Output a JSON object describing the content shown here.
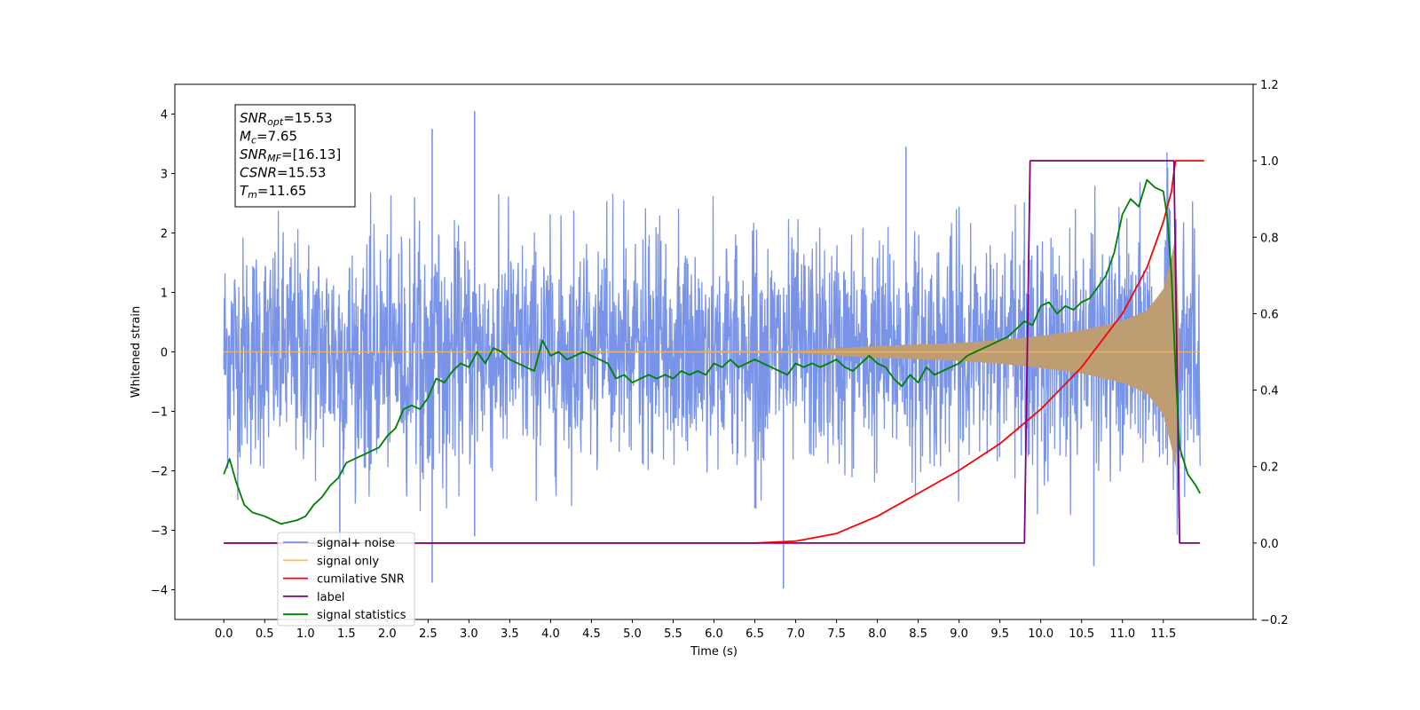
{
  "chart_data": {
    "type": "line",
    "xlabel": "Time (s)",
    "ylabel": "Whitened strain",
    "xlim": [
      -0.6,
      12.6
    ],
    "ylim": [
      -4.5,
      4.5
    ],
    "y2lim": [
      -0.2,
      1.2
    ],
    "x_ticks": [
      "0.0",
      "0.5",
      "1.0",
      "1.5",
      "2.0",
      "2.5",
      "3.0",
      "3.5",
      "4.0",
      "4.5",
      "5.0",
      "5.5",
      "6.0",
      "6.5",
      "7.0",
      "7.5",
      "8.0",
      "8.5",
      "9.0",
      "9.5",
      "10.0",
      "10.5",
      "11.0",
      "11.5"
    ],
    "y_ticks": [
      "4",
      "3",
      "2",
      "1",
      "0",
      "−1",
      "−2",
      "−3",
      "−4"
    ],
    "y2_ticks": [
      "1.2",
      "1.0",
      "0.8",
      "0.6",
      "0.4",
      "0.2",
      "0.0",
      "−0.2"
    ],
    "annotation": [
      {
        "base": "SNR",
        "sub": "opt",
        "value": "=15.53"
      },
      {
        "base": "M",
        "sub": "c",
        "value": "=7.65"
      },
      {
        "base": "SNR",
        "sub": "MF",
        "value": "=[16.13]"
      },
      {
        "base": "CSNR",
        "sub": "",
        "value": "=15.53"
      },
      {
        "base": "T",
        "sub": "m",
        "value": "=11.65"
      }
    ],
    "legend": {
      "placement": "lower-left",
      "entries": [
        {
          "label": "signal+ noise",
          "color": "#7893e8"
        },
        {
          "label": "signal only",
          "color": "#f5c16a"
        },
        {
          "label": "cumilative SNR",
          "color": "#ff0000"
        },
        {
          "label": "label",
          "color": "#800080"
        },
        {
          "label": "signal statistics",
          "color": "#008000"
        }
      ]
    },
    "series": [
      {
        "name": "signal+ noise",
        "axis": "left",
        "color": "#7893e8",
        "description_range": "dense noise between about -2.5 and 2.5 with spikes up to 4.05 and down to -3.98",
        "spikes": [
          [
            3.07,
            4.05
          ],
          [
            2.55,
            3.75
          ],
          [
            8.35,
            3.45
          ],
          [
            6.85,
            -3.98
          ],
          [
            2.55,
            -3.88
          ],
          [
            10.65,
            -3.6
          ],
          [
            3.07,
            -3.1
          ],
          [
            1.42,
            -3.25
          ]
        ]
      },
      {
        "name": "signal only",
        "axis": "left",
        "color": "#f5c16a",
        "envelope": [
          [
            0,
            0.0
          ],
          [
            7.0,
            0.02
          ],
          [
            8.0,
            0.1
          ],
          [
            9.0,
            0.15
          ],
          [
            9.5,
            0.2
          ],
          [
            10.0,
            0.27
          ],
          [
            10.5,
            0.36
          ],
          [
            11.0,
            0.52
          ],
          [
            11.3,
            0.7
          ],
          [
            11.5,
            1.05
          ],
          [
            11.6,
            1.6
          ],
          [
            11.65,
            2.0
          ],
          [
            11.7,
            0.0
          ],
          [
            12.0,
            0.0
          ]
        ]
      },
      {
        "name": "cumilative SNR",
        "axis": "right",
        "color": "#ff0000",
        "x": [
          0,
          6.5,
          7.0,
          7.5,
          8.0,
          8.5,
          9.0,
          9.5,
          10.0,
          10.5,
          11.0,
          11.3,
          11.5,
          11.6,
          11.63,
          11.65,
          12.0
        ],
        "y": [
          0.0,
          0.0,
          0.005,
          0.025,
          0.07,
          0.13,
          0.19,
          0.26,
          0.35,
          0.46,
          0.6,
          0.72,
          0.84,
          0.92,
          0.97,
          1.0,
          1.0
        ]
      },
      {
        "name": "label",
        "axis": "right",
        "color": "#800080",
        "x": [
          0,
          9.8,
          9.87,
          11.63,
          11.7,
          11.95
        ],
        "y": [
          0.0,
          0.0,
          1.0,
          1.0,
          0.0,
          0.0
        ]
      },
      {
        "name": "signal statistics",
        "axis": "right",
        "color": "#008000",
        "x": [
          0.0,
          0.07,
          0.15,
          0.25,
          0.35,
          0.5,
          0.6,
          0.7,
          0.8,
          0.9,
          1.0,
          1.1,
          1.2,
          1.3,
          1.4,
          1.5,
          1.6,
          1.7,
          1.8,
          1.9,
          2.0,
          2.1,
          2.2,
          2.3,
          2.4,
          2.5,
          2.6,
          2.7,
          2.8,
          2.9,
          3.0,
          3.1,
          3.2,
          3.3,
          3.4,
          3.5,
          3.6,
          3.7,
          3.8,
          3.9,
          4.0,
          4.1,
          4.2,
          4.3,
          4.4,
          4.5,
          4.6,
          4.7,
          4.8,
          4.9,
          5.0,
          5.1,
          5.2,
          5.3,
          5.4,
          5.5,
          5.6,
          5.7,
          5.8,
          5.9,
          6.0,
          6.1,
          6.2,
          6.3,
          6.4,
          6.5,
          6.6,
          6.7,
          6.8,
          6.9,
          7.0,
          7.1,
          7.2,
          7.3,
          7.4,
          7.5,
          7.6,
          7.7,
          7.8,
          7.9,
          8.0,
          8.1,
          8.2,
          8.3,
          8.4,
          8.5,
          8.6,
          8.7,
          8.8,
          8.9,
          9.0,
          9.1,
          9.2,
          9.3,
          9.4,
          9.5,
          9.6,
          9.7,
          9.8,
          9.9,
          10.0,
          10.1,
          10.2,
          10.3,
          10.4,
          10.5,
          10.6,
          10.7,
          10.8,
          10.9,
          11.0,
          11.1,
          11.2,
          11.3,
          11.4,
          11.5,
          11.55,
          11.6,
          11.65,
          11.7,
          11.8,
          11.9,
          11.95
        ],
        "y": [
          0.18,
          0.22,
          0.16,
          0.1,
          0.08,
          0.07,
          0.06,
          0.05,
          0.055,
          0.06,
          0.07,
          0.1,
          0.12,
          0.15,
          0.17,
          0.21,
          0.22,
          0.23,
          0.24,
          0.25,
          0.28,
          0.3,
          0.35,
          0.36,
          0.35,
          0.38,
          0.43,
          0.42,
          0.45,
          0.47,
          0.46,
          0.5,
          0.47,
          0.51,
          0.5,
          0.48,
          0.47,
          0.46,
          0.45,
          0.53,
          0.49,
          0.5,
          0.48,
          0.49,
          0.5,
          0.49,
          0.48,
          0.47,
          0.43,
          0.44,
          0.42,
          0.43,
          0.44,
          0.43,
          0.44,
          0.43,
          0.45,
          0.44,
          0.45,
          0.44,
          0.47,
          0.46,
          0.48,
          0.46,
          0.47,
          0.48,
          0.47,
          0.46,
          0.45,
          0.44,
          0.47,
          0.46,
          0.47,
          0.46,
          0.47,
          0.48,
          0.46,
          0.45,
          0.47,
          0.49,
          0.47,
          0.46,
          0.43,
          0.41,
          0.44,
          0.42,
          0.46,
          0.44,
          0.45,
          0.46,
          0.47,
          0.49,
          0.5,
          0.51,
          0.52,
          0.53,
          0.54,
          0.56,
          0.58,
          0.57,
          0.62,
          0.63,
          0.6,
          0.62,
          0.61,
          0.63,
          0.64,
          0.67,
          0.7,
          0.76,
          0.86,
          0.9,
          0.88,
          0.95,
          0.93,
          0.92,
          0.85,
          0.7,
          0.45,
          0.25,
          0.18,
          0.15,
          0.13
        ]
      }
    ]
  }
}
